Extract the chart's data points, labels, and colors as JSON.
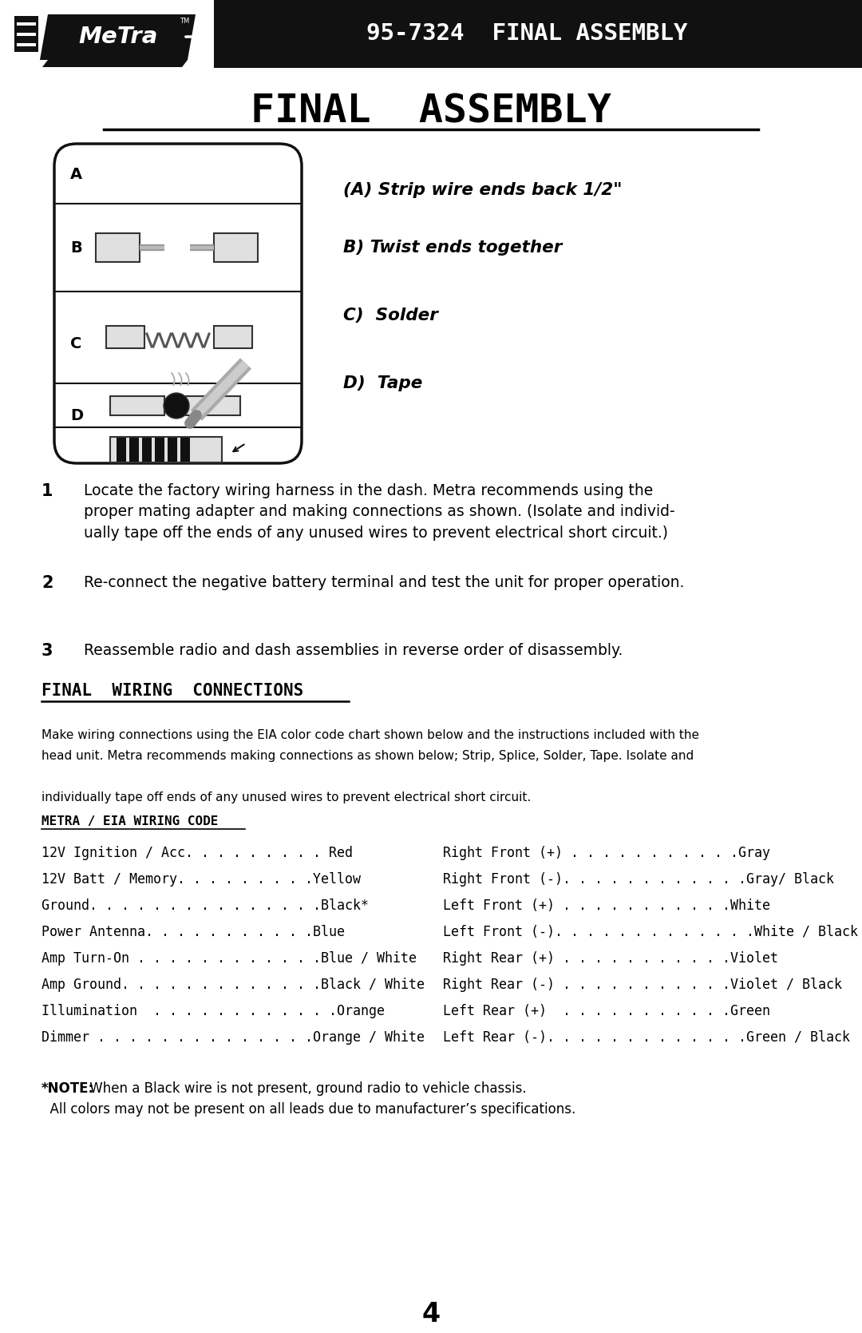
{
  "bg_color": "#ffffff",
  "header_bg": "#111111",
  "header_text": "95-7324  FINAL ASSEMBLY",
  "header_text_color": "#ffffff",
  "page_title": "FINAL  ASSEMBLY",
  "assembly_steps": [
    "(A) Strip wire ends back 1/2\"",
    "B) Twist ends together",
    "C)  Solder",
    "D)  Tape"
  ],
  "numbered_items": [
    "Locate the factory wiring harness in the dash. Metra recommends using the\nproper mating adapter and making connections as shown. (Isolate and individ-\nually tape off the ends of any unused wires to prevent electrical short circuit.)",
    "Re-connect the negative battery terminal and test the unit for proper operation.",
    "Reassemble radio and dash assemblies in reverse order of disassembly."
  ],
  "section_title": "FINAL  WIRING  CONNECTIONS",
  "wiring_intro_1": "Make wiring connections using the EIA color code chart shown below and the instructions included with the",
  "wiring_intro_2": "head unit. Metra recommends making connections as shown below; Strip, Splice, Solder, Tape. Isolate and",
  "wiring_intro_3": "individually tape off ends of any unused wires to prevent electrical short circuit.",
  "wiring_code_title": "METRA / EIA WIRING CODE",
  "wiring_left": [
    [
      "12V Ignition / Acc",
      ". . . . . . . . . ",
      "Red"
    ],
    [
      "12V Batt / Memory",
      ". . . . . . . . .",
      "Yellow"
    ],
    [
      "Ground",
      ". . . . . . . . . . . . . . .",
      "Black*"
    ],
    [
      "Power Antenna",
      ". . . . . . . . . . .",
      "Blue"
    ],
    [
      "Amp Turn-On ",
      ". . . . . . . . . . . .",
      "Blue / White"
    ],
    [
      "Amp Ground",
      ". . . . . . . . . . . . .",
      "Black / White"
    ],
    [
      "Illumination  ",
      ". . . . . . . . . . . .",
      "Orange"
    ],
    [
      "Dimmer ",
      ". . . . . . . . . . . . . .",
      "Orange / White"
    ]
  ],
  "wiring_right": [
    [
      "Right Front (+) ",
      ". . . . . . . . . . .",
      "Gray"
    ],
    [
      "Right Front (-)",
      ". . . . . . . . . . . .",
      "Gray/ Black"
    ],
    [
      "Left Front (+) ",
      ". . . . . . . . . . .",
      "White"
    ],
    [
      "Left Front (-)",
      ". . . . . . . . . . . . .",
      "White / Black"
    ],
    [
      "Right Rear (+) ",
      ". . . . . . . . . . .",
      "Violet"
    ],
    [
      "Right Rear (-) ",
      ". . . . . . . . . . .",
      "Violet / Black"
    ],
    [
      "Left Rear (+)  ",
      ". . . . . . . . . . .",
      "Green"
    ],
    [
      "Left Rear (-)",
      ". . . . . . . . . . . . .",
      "Green / Black"
    ]
  ],
  "note_bold": "*NOTE:",
  "note_rest1": " When a Black wire is not present, ground radio to vehicle chassis.",
  "note_line2": "  All colors may not be present on all leads due to manufacturer’s specifications.",
  "page_number": "4"
}
